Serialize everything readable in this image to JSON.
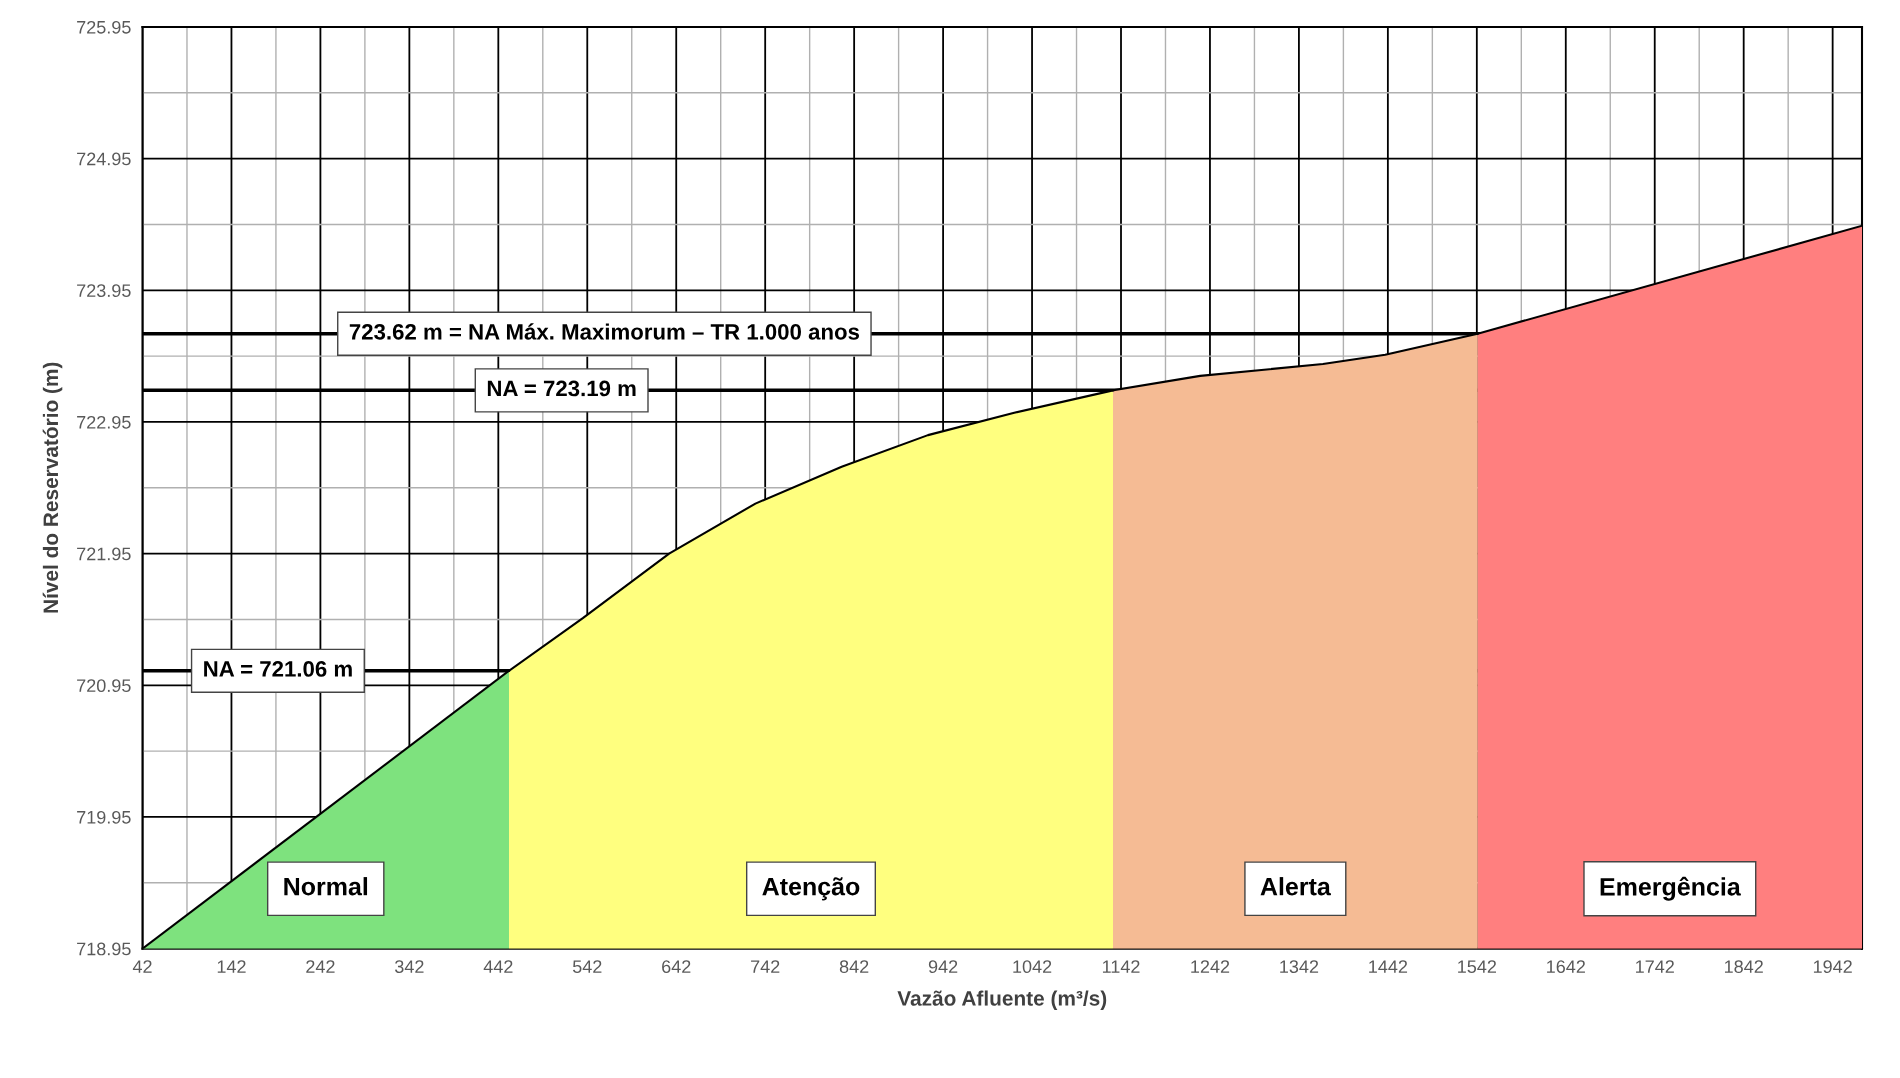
{
  "chart_data": {
    "type": "area",
    "xlabel": "Vazão Afluente (m³/s)",
    "ylabel": "Nível do Reservatório (m)",
    "xlim": [
      42,
      1975
    ],
    "xticks": [
      42,
      142,
      242,
      342,
      442,
      542,
      642,
      742,
      842,
      942,
      1042,
      1142,
      1242,
      1342,
      1442,
      1542,
      1642,
      1742,
      1842,
      1942
    ],
    "ylim": [
      718.95,
      725.95
    ],
    "yticks": [
      718.95,
      719.95,
      720.95,
      721.95,
      722.95,
      723.95,
      724.95,
      725.95
    ],
    "grid": true,
    "series": [
      {
        "color": "#7ee27e",
        "x": [
          42,
          454
        ],
        "values": [
          718.95,
          721.06
        ]
      },
      {
        "color": "#ffff7f",
        "x": [
          454,
          537,
          634,
          731,
          828,
          925,
          1022,
          1133
        ],
        "values": [
          721.06,
          721.46,
          721.95,
          722.33,
          722.61,
          722.85,
          723.02,
          723.19
        ]
      },
      {
        "color": "#f5bb94",
        "x": [
          1133,
          1231,
          1369,
          1439,
          1543
        ],
        "values": [
          723.19,
          723.3,
          723.39,
          723.46,
          723.62
        ]
      },
      {
        "color": "#ff7f7f",
        "x": [
          1543,
          1975
        ],
        "values": [
          723.62,
          724.44
        ]
      }
    ],
    "ref_lines": [
      {
        "axis": "y",
        "value": 721.06,
        "label": "NA = 721.06 m"
      },
      {
        "axis": "y",
        "value": 723.19,
        "label": "NA = 723.19 m"
      },
      {
        "axis": "y",
        "value": 723.62,
        "label": "723.62 m = NA Máx. Maximorum – TR 1.000 anos"
      }
    ],
    "annotations": [
      "Normal",
      "Atenção",
      "Alerta",
      "Emergência"
    ]
  }
}
